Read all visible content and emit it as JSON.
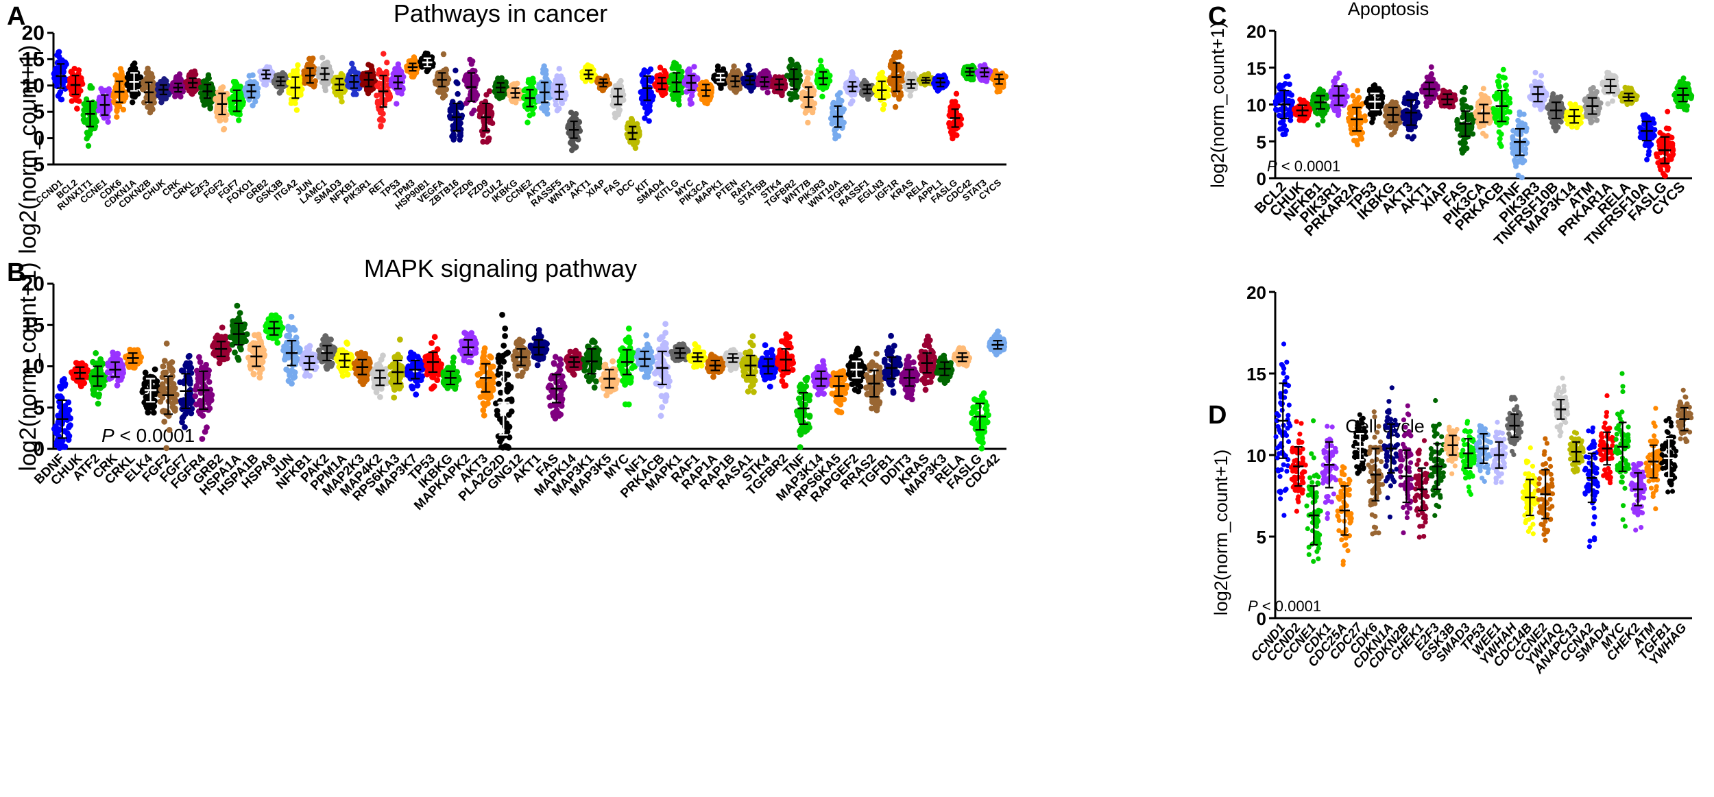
{
  "figure": {
    "panels": [
      {
        "label": "A",
        "title": "Pathways in cancer",
        "ylabel": "log2(norm_count+1)",
        "yticks": [
          "-5",
          "0",
          "5",
          "10",
          "15",
          "20"
        ]
      },
      {
        "label": "B",
        "title": "MAPK signaling pathway",
        "ylabel": "log2(norm_count+1)",
        "yticks": [
          "0",
          "5",
          "10",
          "15",
          "20"
        ],
        "pvalue_p": "P",
        "pvalue_rest": " < 0.0001"
      },
      {
        "label": "C",
        "title": "Apoptosis",
        "ylabel": "log2(norm_count+1)",
        "yticks": [
          "0",
          "5",
          "10",
          "15",
          "20"
        ],
        "pvalue_p": "P",
        "pvalue_rest": " < 0.0001"
      },
      {
        "label": "D",
        "title": "Cell cycle",
        "ylabel": "log2(norm_count+1)",
        "yticks": [
          "0",
          "5",
          "10",
          "15",
          "20"
        ],
        "pvalue_p": "P",
        "pvalue_rest": " < 0.0001"
      }
    ]
  },
  "chart_data": [
    {
      "panel": "A",
      "type": "scatter",
      "title": "Pathways in cancer",
      "ylabel": "log2(norm_count+1)",
      "ylim": [
        -5,
        20
      ],
      "categories": [
        "CCND1",
        "BCL2",
        "RUNX1T1",
        "CCNE1",
        "CDK6",
        "CDKN1A",
        "CDKN2B",
        "CHUK",
        "CRK",
        "CRKL",
        "E2F3",
        "FGF2",
        "FGF7",
        "FOXO1",
        "GRB2",
        "GSK3B",
        "ITGA2",
        "JUN",
        "LAMC1",
        "SMAD3",
        "NFKB1",
        "PIK3R1",
        "RET",
        "TP53",
        "TPM3",
        "HSP90B1",
        "VEGFA",
        "ZBTB16",
        "FZD6",
        "FZD9",
        "CUL2",
        "IKBKG",
        "CCNE2",
        "AKT3",
        "RASSF5",
        "WNT3A",
        "AKT1",
        "XIAP",
        "FAS",
        "DCC",
        "KIT",
        "SMAD4",
        "KITLG",
        "MYC",
        "PIK3CA",
        "MAPK1",
        "PTEN",
        "RAF1",
        "STAT5B",
        "STK4",
        "TGFBR2",
        "WNT7B",
        "PIK3R3",
        "WNT10A",
        "TGFB1",
        "RASSF1",
        "EGLN3",
        "IGF1R",
        "KRAS",
        "RELA",
        "APPL1",
        "FASLG",
        "CDC42",
        "STAT3",
        "CYCS"
      ],
      "means": [
        11.8,
        10.1,
        4.6,
        6.3,
        8.8,
        10.7,
        8.7,
        9.2,
        9.6,
        10.5,
        8.9,
        6.5,
        7.1,
        8.9,
        12.1,
        10.8,
        9.6,
        11.9,
        12.2,
        10.2,
        10.7,
        11.1,
        8.9,
        10.6,
        13.5,
        14.4,
        11.1,
        4.0,
        9.7,
        4.0,
        9.6,
        8.6,
        7.6,
        8.7,
        8.8,
        1.6,
        12.1,
        10.5,
        7.9,
        1.0,
        9.5,
        10.4,
        10.6,
        10.5,
        9.1,
        11.5,
        10.8,
        11.0,
        10.7,
        10.2,
        11.2,
        7.8,
        11.4,
        4.1,
        9.8,
        9.3,
        9.1,
        11.6,
        10.3,
        11.0,
        10.6,
        3.8,
        12.6,
        12.5,
        11.2
      ],
      "sds": [
        2.3,
        1.8,
        2.4,
        1.9,
        2.0,
        1.7,
        1.9,
        0.9,
        0.8,
        0.9,
        1.3,
        2.0,
        2.0,
        1.2,
        0.8,
        0.8,
        2.0,
        1.4,
        1.1,
        1.1,
        1.2,
        1.3,
        3.0,
        1.2,
        0.7,
        0.8,
        1.3,
        2.6,
        2.7,
        2.6,
        0.9,
        0.9,
        1.6,
        1.9,
        1.4,
        1.6,
        0.8,
        0.7,
        1.5,
        1.2,
        2.3,
        1.1,
        1.8,
        1.4,
        1.1,
        0.8,
        1.0,
        0.8,
        0.9,
        1.0,
        1.9,
        1.9,
        1.2,
        2.0,
        0.9,
        0.8,
        1.7,
        2.7,
        0.8,
        0.5,
        0.8,
        1.7,
        0.7,
        0.8,
        0.9
      ],
      "colors": [
        "#0000ff",
        "#ff0000",
        "#00cc00",
        "#9933ff",
        "#ff8800",
        "#000000",
        "#996633",
        "#1a1a80",
        "#800080",
        "#990033",
        "#006600",
        "#ffbb77",
        "#00ee00",
        "#77aaee",
        "#bbbbff",
        "#666666",
        "#ffff00",
        "#cc6600",
        "#bbbbbb",
        "#cccc00",
        "#2233cc",
        "#8b0000",
        "#ff2020",
        "#9933ff",
        "#ff8800",
        "#000000",
        "#996633",
        "#000080",
        "#800080",
        "#990033",
        "#006600",
        "#ffbb77",
        "#00ee00",
        "#77aaee",
        "#bbbbff",
        "#555555",
        "#ffff00",
        "#cc6600",
        "#cccccc",
        "#bbbb00",
        "#0000ff",
        "#ff0000",
        "#00cc00",
        "#9933ff",
        "#ff8800",
        "#000000",
        "#996633",
        "#000080",
        "#800080",
        "#990033",
        "#006600",
        "#ffbb77",
        "#00ee00",
        "#77aaee",
        "#bbbbff",
        "#666666",
        "#ffff00",
        "#cc6600",
        "#cccccc",
        "#bbbb00",
        "#0000ff",
        "#ff0000",
        "#00cc00",
        "#9933ff",
        "#ff8800"
      ]
    },
    {
      "panel": "B",
      "type": "scatter",
      "title": "MAPK signaling pathway",
      "ylabel": "log2(norm_count+1)",
      "ylim": [
        0,
        20
      ],
      "categories": [
        "BDNF",
        "CHUK",
        "ATF2",
        "CRK",
        "CRKL",
        "ELK4",
        "FGF2",
        "FGF7",
        "FGFR4",
        "GRB2",
        "HSPA1A",
        "HSPA1B",
        "HSPA8",
        "JUN",
        "NFKB1",
        "PAK2",
        "PPM1A",
        "MAP2K3",
        "MAP4K2",
        "RPS6KA3",
        "MAP3K7",
        "TP53",
        "IKBKG",
        "MAPKAPK2",
        "AKT3",
        "PLA2G2D",
        "GNG12",
        "AKT1",
        "FAS",
        "MAPK14",
        "MAP3K1",
        "MAP3K5",
        "MYC",
        "NF1",
        "PRKACB",
        "MAPK1",
        "RAF1",
        "RAP1A",
        "RAP1B",
        "RASA1",
        "STK4",
        "TGFBR2",
        "TNF",
        "MAP3K14",
        "RPS6KA5",
        "RAPGEF2",
        "RRAS2",
        "TGFB1",
        "DDIT3",
        "KRAS",
        "MAP3K3",
        "RELA",
        "FASLG",
        "CDC42"
      ],
      "means": [
        3.6,
        9.2,
        8.8,
        9.6,
        11.0,
        7.1,
        6.5,
        7.0,
        7.1,
        12.1,
        13.9,
        11.2,
        14.6,
        11.6,
        10.4,
        11.6,
        10.7,
        9.9,
        8.6,
        9.3,
        9.6,
        10.5,
        8.6,
        12.3,
        8.6,
        5.6,
        11.1,
        12.3,
        7.3,
        10.5,
        10.6,
        8.5,
        10.5,
        10.9,
        9.8,
        11.6,
        11.1,
        10.1,
        11.0,
        10.1,
        10.0,
        10.8,
        4.9,
        8.5,
        7.6,
        9.6,
        7.9,
        9.8,
        8.6,
        10.4,
        9.7,
        11.1,
        3.9,
        12.6
      ],
      "sds": [
        2.3,
        0.7,
        1.2,
        0.9,
        0.6,
        1.4,
        2.3,
        2.1,
        2.3,
        0.9,
        1.3,
        1.2,
        0.8,
        1.5,
        0.8,
        0.9,
        0.8,
        0.9,
        0.9,
        1.4,
        1.1,
        1.2,
        0.8,
        0.9,
        1.7,
        3.9,
        1.0,
        0.9,
        1.7,
        0.6,
        1.5,
        1.1,
        1.5,
        0.9,
        2.0,
        0.6,
        0.5,
        0.6,
        0.5,
        1.2,
        0.9,
        1.3,
        1.9,
        0.9,
        1.2,
        1.0,
        1.6,
        1.3,
        1.0,
        1.2,
        0.8,
        0.5,
        1.6,
        0.5
      ],
      "colors": [
        "#0000ff",
        "#ff0000",
        "#00cc00",
        "#9933ff",
        "#ff8800",
        "#000000",
        "#996633",
        "#000080",
        "#800080",
        "#990033",
        "#006600",
        "#ffbb77",
        "#00ee00",
        "#77aaee",
        "#bbbbff",
        "#666666",
        "#ffff00",
        "#cc6600",
        "#cccccc",
        "#bbbb00",
        "#0000ff",
        "#ff0000",
        "#00cc00",
        "#9933ff",
        "#ff8800",
        "#000000",
        "#996633",
        "#000080",
        "#800080",
        "#990033",
        "#006600",
        "#ffbb77",
        "#00ee00",
        "#77aaee",
        "#bbbbff",
        "#666666",
        "#ffff00",
        "#cc6600",
        "#cccccc",
        "#bbbb00",
        "#0000ff",
        "#ff0000",
        "#00cc00",
        "#9933ff",
        "#ff8800",
        "#000000",
        "#996633",
        "#000080",
        "#800080",
        "#990033",
        "#006600",
        "#ffbb77",
        "#00ee00",
        "#77aaee"
      ]
    },
    {
      "panel": "C",
      "type": "scatter",
      "title": "Apoptosis",
      "ylabel": "log2(norm_count+1)",
      "ylim": [
        0,
        20
      ],
      "categories": [
        "BCL2",
        "CHUK",
        "NFKB1",
        "PIK3R1",
        "PRKAR2A",
        "TP53",
        "IKBKG",
        "AKT3",
        "AKT1",
        "XIAP",
        "FAS",
        "PIK3CA",
        "PRKACB",
        "TNF",
        "PIK3R3",
        "TNFRSF10B",
        "MAP3K14",
        "ATM",
        "PRKAR1A",
        "RELA",
        "TNFRSF10A",
        "FASLG",
        "CYCS"
      ],
      "means": [
        10.0,
        9.2,
        10.3,
        11.2,
        8.0,
        10.4,
        8.6,
        8.9,
        12.1,
        10.7,
        7.4,
        8.8,
        9.8,
        4.9,
        11.4,
        9.2,
        8.4,
        9.8,
        12.5,
        11.0,
        6.4,
        3.8,
        11.3
      ],
      "sds": [
        1.9,
        0.7,
        0.9,
        1.3,
        1.6,
        1.1,
        1.0,
        1.7,
        0.9,
        0.7,
        1.7,
        1.2,
        2.1,
        1.8,
        1.0,
        1.1,
        0.9,
        1.1,
        0.9,
        0.5,
        1.3,
        1.8,
        0.9
      ],
      "colors": [
        "#0000ff",
        "#ff0000",
        "#00aa00",
        "#9933ff",
        "#ff8800",
        "#000000",
        "#996633",
        "#000080",
        "#800080",
        "#990033",
        "#006600",
        "#ffbb77",
        "#00ee00",
        "#77aaee",
        "#bbbbff",
        "#666666",
        "#ffff00",
        "#999999",
        "#cccccc",
        "#bbbb00",
        "#0000ff",
        "#ff0000",
        "#00cc00"
      ]
    },
    {
      "panel": "D",
      "type": "scatter",
      "title": "Cell cycle",
      "ylabel": "log2(norm_count+1)",
      "ylim": [
        0,
        20
      ],
      "categories": [
        "CCND1",
        "CCND2",
        "CCNE1",
        "CDK1",
        "CDC25A",
        "CDC27",
        "CDK6",
        "CDKN1A",
        "CDKN2B",
        "CHEK1",
        "E2F3",
        "GSK3B",
        "SMAD3",
        "TP53",
        "WEE1",
        "YWHAH",
        "CDC14B",
        "CCNE2",
        "YWHAQ",
        "ANAPC13",
        "CCNA2",
        "SMAD4",
        "MYC",
        "CHEK2",
        "ATM",
        "TGFB1",
        "YWHAG"
      ],
      "means": [
        12.1,
        9.3,
        6.3,
        9.4,
        6.6,
        10.5,
        8.8,
        10.4,
        8.7,
        7.9,
        9.3,
        10.6,
        10.1,
        10.4,
        10.0,
        11.8,
        7.4,
        7.6,
        12.8,
        10.2,
        8.6,
        10.4,
        10.5,
        7.9,
        9.6,
        9.8,
        12.2
      ],
      "sds": [
        2.3,
        1.2,
        1.8,
        1.4,
        1.5,
        0.8,
        1.6,
        1.5,
        1.6,
        1.3,
        1.4,
        0.6,
        0.9,
        0.9,
        0.8,
        0.7,
        1.1,
        1.5,
        0.6,
        0.6,
        1.5,
        1.0,
        1.5,
        1.0,
        1.0,
        1.2,
        0.7
      ],
      "colors": [
        "#0000ff",
        "#ff0000",
        "#00cc00",
        "#9933ff",
        "#ff8800",
        "#000000",
        "#996633",
        "#000080",
        "#800080",
        "#990033",
        "#006600",
        "#ffbb77",
        "#00ee00",
        "#77aaee",
        "#bbbbff",
        "#666666",
        "#ffff00",
        "#cc6600",
        "#cccccc",
        "#bbbb00",
        "#0000ff",
        "#ff0000",
        "#00cc00",
        "#9933ff",
        "#ff8800",
        "#000000",
        "#996633"
      ]
    }
  ]
}
